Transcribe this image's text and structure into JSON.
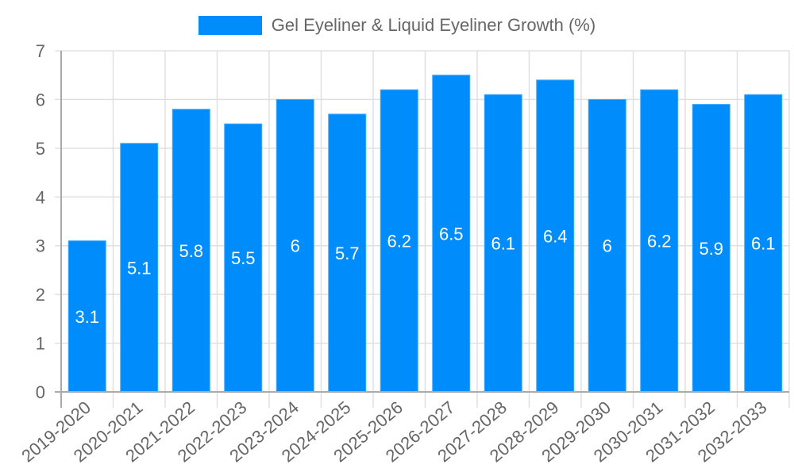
{
  "chart_data": {
    "type": "bar",
    "title": "",
    "xlabel": "",
    "ylabel": "",
    "ylim": [
      0,
      7
    ],
    "yticks": [
      0,
      1,
      2,
      3,
      4,
      5,
      6,
      7
    ],
    "grid": true,
    "legend_position": "top",
    "categories": [
      "2019-2020",
      "2020-2021",
      "2021-2022",
      "2022-2023",
      "2023-2024",
      "2024-2025",
      "2025-2026",
      "2026-2027",
      "2027-2028",
      "2028-2029",
      "2029-2030",
      "2030-2031",
      "2031-2032",
      "2032-2033"
    ],
    "series": [
      {
        "name": "Gel Eyeliner & Liquid Eyeliner Growth (%)",
        "color": "#008cfa",
        "values": [
          3.1,
          5.1,
          5.8,
          5.5,
          6,
          5.7,
          6.2,
          6.5,
          6.1,
          6.4,
          6,
          6.2,
          5.9,
          6.1
        ]
      }
    ]
  },
  "legend": {
    "label": "Gel Eyeliner & Liquid Eyeliner Growth (%)",
    "color": "#008cfa"
  }
}
